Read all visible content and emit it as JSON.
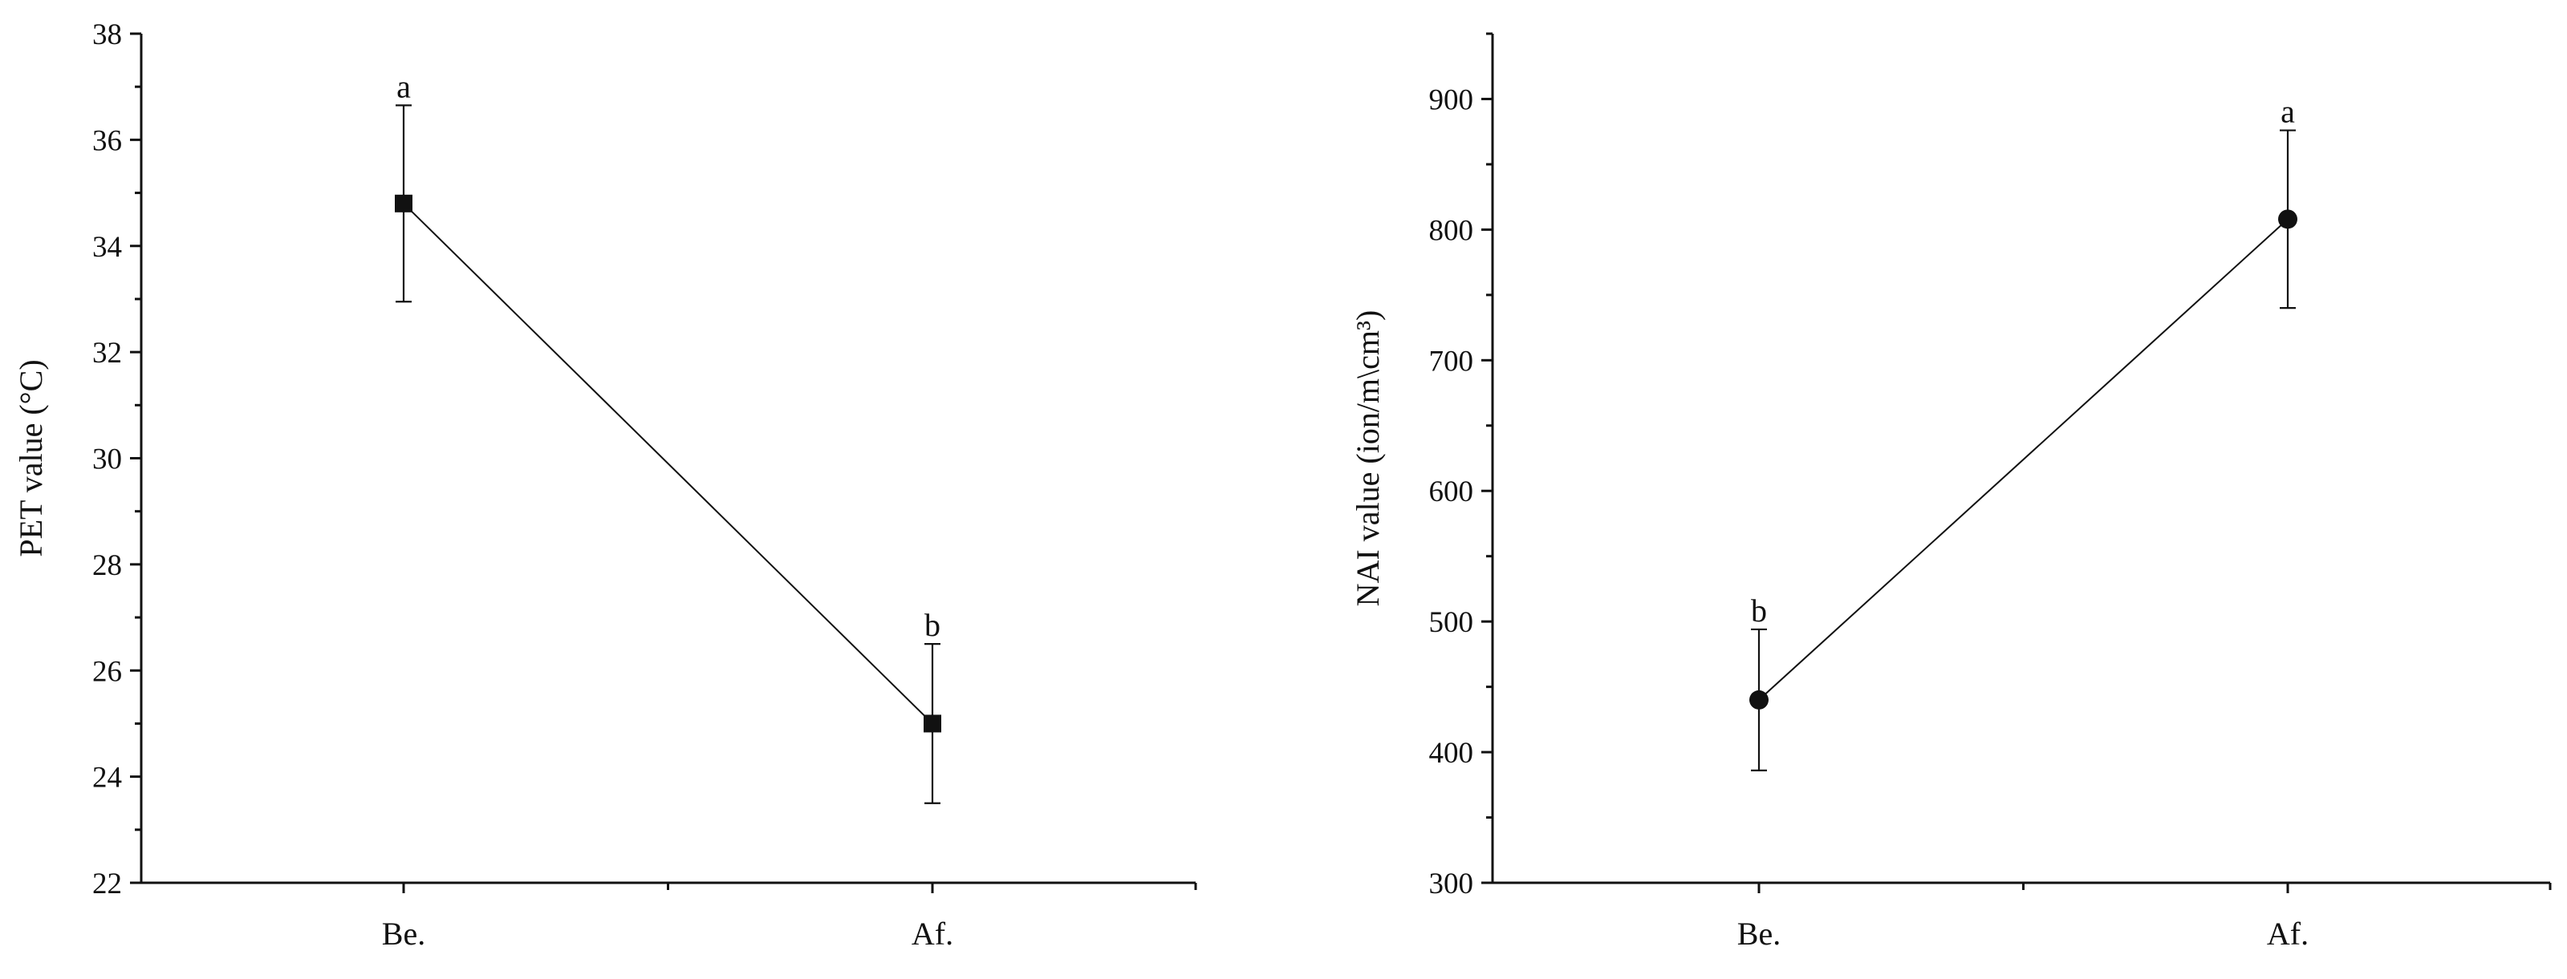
{
  "chart_data": [
    {
      "type": "line",
      "title": "",
      "xlabel": "",
      "ylabel": "PET value (°C)",
      "categories": [
        "Be.",
        "Af."
      ],
      "series": [
        {
          "values": [
            34.8,
            25.0
          ],
          "error": [
            1.85,
            1.5
          ],
          "marker": "square",
          "letters": [
            "a",
            "b"
          ]
        }
      ],
      "ylim": [
        22,
        38
      ],
      "yticks": [
        22,
        24,
        26,
        28,
        30,
        32,
        34,
        36,
        38
      ],
      "minor_ytick_step": 1,
      "grid": false,
      "color": "#111111"
    },
    {
      "type": "line",
      "title": "",
      "xlabel": "",
      "ylabel": "NAI value (ion/m\\cm³)",
      "categories": [
        "Be.",
        "Af."
      ],
      "series": [
        {
          "values": [
            440,
            808
          ],
          "error": [
            54,
            68
          ],
          "marker": "circle",
          "letters": [
            "b",
            "a"
          ]
        }
      ],
      "ylim": [
        300,
        950
      ],
      "yticks": [
        300,
        400,
        500,
        600,
        700,
        800,
        900
      ],
      "minor_ytick_step": 50,
      "grid": false,
      "color": "#111111"
    }
  ]
}
